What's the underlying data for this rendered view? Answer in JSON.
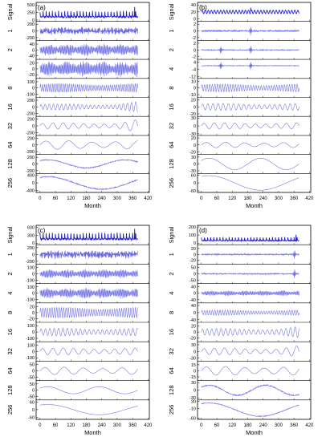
{
  "panel_labels": [
    "(a)",
    "(b)",
    "(c)",
    "(d)"
  ],
  "colors": {
    "signal": "#1f1fd0",
    "component": "#6a6ae6",
    "axis": "#000000"
  },
  "chart_data": [
    {
      "type": "line",
      "panel": "(a)",
      "xlabel": "Month",
      "xticks": [
        0,
        60,
        120,
        180,
        240,
        300,
        360,
        420
      ],
      "xlim": [
        -15,
        425
      ],
      "rows": [
        {
          "label": "Signal",
          "ticks": [
            0,
            250,
            500
          ],
          "ylim": [
            -20,
            560
          ],
          "kind": "spiky",
          "amp": 180,
          "offset": 100
        },
        {
          "label": "1",
          "ticks": [
            -200,
            0,
            200
          ],
          "ylim": [
            -260,
            260
          ],
          "kind": "hf",
          "amp": 110
        },
        {
          "label": "2",
          "ticks": [
            -40,
            0,
            40
          ],
          "ylim": [
            -60,
            60
          ],
          "kind": "burst",
          "amp": 35
        },
        {
          "label": "4",
          "ticks": [
            -20,
            0,
            20
          ],
          "ylim": [
            -30,
            30
          ],
          "kind": "burst",
          "amp": 22
        },
        {
          "label": "8",
          "ticks": [
            -100,
            0,
            100
          ],
          "ylim": [
            -140,
            140
          ],
          "kind": "osc",
          "amp": 70,
          "period": 8
        },
        {
          "label": "16",
          "ticks": [
            -200,
            0,
            200
          ],
          "ylim": [
            -260,
            260
          ],
          "kind": "osc",
          "amp": 90,
          "period": 16,
          "growth": 1.8
        },
        {
          "label": "32",
          "ticks": [
            -200,
            0,
            200
          ],
          "ylim": [
            -260,
            260
          ],
          "kind": "osc",
          "amp": 90,
          "period": 40,
          "growth": 2.2
        },
        {
          "label": "64",
          "ticks": [
            -200,
            0,
            200
          ],
          "ylim": [
            -260,
            260
          ],
          "kind": "osc",
          "amp": 130,
          "period": 90
        },
        {
          "label": "128",
          "ticks": [
            -200,
            0,
            200
          ],
          "ylim": [
            -260,
            260
          ],
          "kind": "smooth",
          "amp": 120,
          "period": 300,
          "noise": 30
        },
        {
          "label": "256",
          "ticks": [
            -400,
            -200,
            0,
            200,
            400
          ],
          "ylim": [
            -460,
            460
          ],
          "kind": "smooth",
          "amp": 330,
          "period": 420,
          "noise": 60
        }
      ]
    },
    {
      "type": "line",
      "panel": "(b)",
      "xlabel": "Month",
      "xticks": [
        0,
        60,
        120,
        180,
        240,
        300,
        360,
        420
      ],
      "xlim": [
        -15,
        425
      ],
      "rows": [
        {
          "label": "Signal",
          "ticks": [
            0,
            20,
            40
          ],
          "ylim": [
            -5,
            45
          ],
          "kind": "periodic",
          "amp": 5,
          "offset": 20
        },
        {
          "label": "1",
          "ticks": [
            -2,
            0,
            2
          ],
          "ylim": [
            -2.6,
            2.6
          ],
          "kind": "flat",
          "amp": 0.3,
          "spikes": [
            192
          ]
        },
        {
          "label": "2",
          "ticks": [
            -2,
            0,
            2
          ],
          "ylim": [
            -2.6,
            2.6
          ],
          "kind": "flat",
          "amp": 0.2,
          "spikes": [
            75,
            192
          ]
        },
        {
          "label": "4",
          "ticks": [
            -12,
            -8,
            -4,
            0,
            4
          ],
          "ylim": [
            -13,
            6
          ],
          "kind": "flat",
          "amp": 0.5,
          "spikes": [
            75,
            192
          ]
        },
        {
          "label": "8",
          "ticks": [
            -10,
            0,
            10
          ],
          "ylim": [
            -13,
            13
          ],
          "kind": "osc",
          "amp": 6,
          "period": 10
        },
        {
          "label": "16",
          "ticks": [
            -20,
            0,
            20
          ],
          "ylim": [
            -25,
            25
          ],
          "kind": "osc",
          "amp": 10,
          "period": 20
        },
        {
          "label": "32",
          "ticks": [
            -30,
            -20,
            -10,
            0,
            10,
            20,
            30
          ],
          "ylim": [
            -33,
            33
          ],
          "kind": "osc",
          "amp": 12,
          "period": 40
        },
        {
          "label": "64",
          "ticks": [
            -20,
            0,
            20
          ],
          "ylim": [
            -25,
            25
          ],
          "kind": "osc",
          "amp": 8,
          "period": 75
        },
        {
          "label": "128",
          "ticks": [
            -30,
            0,
            30
          ],
          "ylim": [
            -38,
            38
          ],
          "kind": "smooth",
          "amp": 25,
          "period": 200
        },
        {
          "label": "256",
          "ticks": [
            -60,
            -40,
            -20,
            0,
            20,
            40,
            60
          ],
          "ylim": [
            -66,
            66
          ],
          "kind": "smooth",
          "amp": 55,
          "period": 400
        }
      ]
    },
    {
      "type": "line",
      "panel": "(c)",
      "xlabel": "Month",
      "xticks": [
        0,
        60,
        120,
        180,
        240,
        300,
        360,
        420
      ],
      "xlim": [
        -15,
        425
      ],
      "rows": [
        {
          "label": "Signal",
          "ticks": [
            0,
            300,
            600
          ],
          "ylim": [
            -30,
            650
          ],
          "kind": "spiky",
          "amp": 220,
          "offset": 150
        },
        {
          "label": "1",
          "ticks": [
            -200,
            0,
            200
          ],
          "ylim": [
            -260,
            260
          ],
          "kind": "hf",
          "amp": 120
        },
        {
          "label": "2",
          "ticks": [
            -100,
            0,
            100
          ],
          "ylim": [
            -140,
            140
          ],
          "kind": "burst",
          "amp": 60
        },
        {
          "label": "4",
          "ticks": [
            -100,
            0,
            100
          ],
          "ylim": [
            -140,
            140
          ],
          "kind": "burst",
          "amp": 70
        },
        {
          "label": "8",
          "ticks": [
            -20,
            0,
            20
          ],
          "ylim": [
            -30,
            30
          ],
          "kind": "osc",
          "amp": 18,
          "period": 9
        },
        {
          "label": "16",
          "ticks": [
            -100,
            0,
            100
          ],
          "ylim": [
            -140,
            140
          ],
          "kind": "osc",
          "amp": 60,
          "period": 17
        },
        {
          "label": "32",
          "ticks": [
            -100,
            0,
            100
          ],
          "ylim": [
            -140,
            140
          ],
          "kind": "osc",
          "amp": 55,
          "period": 40
        },
        {
          "label": "64",
          "ticks": [
            -50,
            0,
            50
          ],
          "ylim": [
            -70,
            70
          ],
          "kind": "osc",
          "amp": 30,
          "period": 75
        },
        {
          "label": "128",
          "ticks": [
            -50,
            0,
            50
          ],
          "ylim": [
            -70,
            70
          ],
          "kind": "smooth",
          "amp": 28,
          "period": 200
        },
        {
          "label": "256",
          "ticks": [
            -60,
            -30,
            0,
            30,
            60
          ],
          "ylim": [
            -70,
            70
          ],
          "kind": "smooth",
          "amp": 40,
          "period": 400
        }
      ]
    },
    {
      "type": "line",
      "panel": "(d)",
      "xlabel": "Month",
      "xticks": [
        0,
        60,
        120,
        180,
        240,
        300,
        360,
        420
      ],
      "xlim": [
        -15,
        425
      ],
      "rows": [
        {
          "label": "Signal",
          "ticks": [
            0,
            100,
            200
          ],
          "ylim": [
            -10,
            210
          ],
          "kind": "spiky",
          "amp": 40,
          "offset": 30
        },
        {
          "label": "1",
          "ticks": [
            -20,
            0,
            20
          ],
          "ylim": [
            -30,
            30
          ],
          "kind": "flat",
          "amp": 3,
          "spikes": [
            362
          ]
        },
        {
          "label": "2",
          "ticks": [
            -50,
            0,
            50
          ],
          "ylim": [
            -70,
            70
          ],
          "kind": "flat",
          "amp": 6,
          "spikes": [
            362
          ]
        },
        {
          "label": "4",
          "ticks": [
            -40,
            0,
            40
          ],
          "ylim": [
            -55,
            55
          ],
          "kind": "burst",
          "amp": 14
        },
        {
          "label": "8",
          "ticks": [
            -40,
            -20,
            0,
            20,
            40
          ],
          "ylim": [
            -50,
            50
          ],
          "kind": "osc",
          "amp": 15,
          "period": 10
        },
        {
          "label": "16",
          "ticks": [
            -20,
            0,
            20
          ],
          "ylim": [
            -30,
            30
          ],
          "kind": "osc",
          "amp": 12,
          "period": 18,
          "growth": 1.6
        },
        {
          "label": "32",
          "ticks": [
            -30,
            0,
            30
          ],
          "ylim": [
            -40,
            40
          ],
          "kind": "osc",
          "amp": 15,
          "period": 40,
          "growth": 1.8
        },
        {
          "label": "64",
          "ticks": [
            -15,
            0,
            15
          ],
          "ylim": [
            -22,
            22
          ],
          "kind": "osc",
          "amp": 11,
          "period": 75
        },
        {
          "label": "128",
          "ticks": [
            -30,
            -20,
            -10,
            0,
            10,
            20,
            30
          ],
          "ylim": [
            -35,
            35
          ],
          "kind": "smooth",
          "amp": 20,
          "period": 220,
          "noise": 5
        },
        {
          "label": "256",
          "ticks": [
            -60,
            -50,
            -40,
            -30,
            -20,
            -10,
            0,
            10,
            20,
            30
          ],
          "ylim": [
            -62,
            32
          ],
          "kind": "smooth",
          "amp": 35,
          "period": 400,
          "noise": 4,
          "offset": -15
        }
      ]
    }
  ]
}
